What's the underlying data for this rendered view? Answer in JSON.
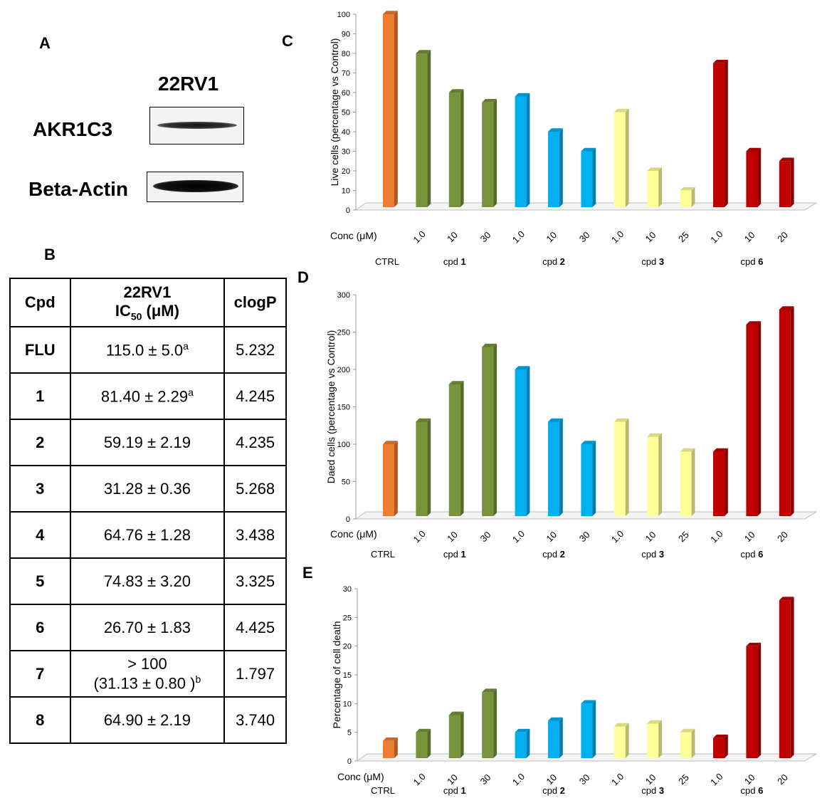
{
  "panel_a": {
    "letter": "A",
    "cell_line": "22RV1",
    "protein_1": "AKR1C3",
    "protein_2": "Beta-Actin"
  },
  "panel_b": {
    "letter": "B",
    "headers": {
      "cpd": "Cpd",
      "ic50_line1": "22RV1",
      "ic50_prefix": "IC",
      "ic50_sub": "50",
      "ic50_unit": " (μM)",
      "clogp": "clogP"
    },
    "rows": [
      {
        "cpd": "FLU",
        "ic50": "115.0 ± 5.0",
        "sup": "a",
        "clogp": "5.232"
      },
      {
        "cpd": "1",
        "ic50": "81.40 ± 2.29",
        "sup": "a",
        "clogp": "4.245"
      },
      {
        "cpd": "2",
        "ic50": "59.19 ± 2.19",
        "sup": "",
        "clogp": "4.235"
      },
      {
        "cpd": "3",
        "ic50": "31.28 ± 0.36",
        "sup": "",
        "clogp": "5.268"
      },
      {
        "cpd": "4",
        "ic50": "64.76 ± 1.28",
        "sup": "",
        "clogp": "3.438"
      },
      {
        "cpd": "5",
        "ic50": "74.83 ± 3.20",
        "sup": "",
        "clogp": "3.325"
      },
      {
        "cpd": "6",
        "ic50": "26.70 ± 1.83",
        "sup": "",
        "clogp": "4.425"
      },
      {
        "cpd": "7",
        "ic50": "> 100",
        "ic50_line2": "(31.13 ± 0.80 )",
        "sup": "b",
        "clogp": "1.797"
      },
      {
        "cpd": "8",
        "ic50": "64.90 ± 2.19",
        "sup": "",
        "clogp": "3.740"
      }
    ]
  },
  "colors": {
    "ctrl": "#ed7d31",
    "cpd1": "#77933c",
    "cpd2": "#00b0f0",
    "cpd3": "#ffff99",
    "cpd6": "#c00000"
  },
  "chart_data": [
    {
      "panel": "C",
      "type": "bar",
      "ylabel": "Live cells (percentage vs Control)",
      "conc_label": "Conc (μM)",
      "ylim": [
        0,
        100
      ],
      "yticks": [
        0,
        10,
        20,
        30,
        40,
        50,
        60,
        70,
        80,
        90,
        100
      ],
      "conc": [
        "",
        "1.0",
        "10",
        "30",
        "1.0",
        "10",
        "30",
        "1.0",
        "10",
        "25",
        "1.0",
        "10",
        "20"
      ],
      "groups": [
        "ctrl",
        "cpd1",
        "cpd1",
        "cpd1",
        "cpd2",
        "cpd2",
        "cpd2",
        "cpd3",
        "cpd3",
        "cpd3",
        "cpd6",
        "cpd6",
        "cpd6"
      ],
      "values": [
        100,
        80,
        60,
        55,
        58,
        40,
        30,
        50,
        20,
        10,
        75,
        30,
        25
      ],
      "group_labels": [
        {
          "text": "CTRL",
          "num": ""
        },
        {
          "text": "cpd ",
          "num": "1"
        },
        {
          "text": "cpd ",
          "num": "2"
        },
        {
          "text": "cpd ",
          "num": "3"
        },
        {
          "text": "cpd ",
          "num": "6"
        }
      ]
    },
    {
      "panel": "D",
      "type": "bar",
      "ylabel": "Daed cells (percentage vs Control)",
      "conc_label": "Conc (μM)",
      "ylim": [
        0,
        300
      ],
      "yticks": [
        0,
        50,
        100,
        150,
        200,
        250,
        300
      ],
      "conc": [
        "",
        "1.0",
        "10",
        "30",
        "1.0",
        "10",
        "30",
        "1.0",
        "10",
        "25",
        "1.0",
        "10",
        "20"
      ],
      "groups": [
        "ctrl",
        "cpd1",
        "cpd1",
        "cpd1",
        "cpd2",
        "cpd2",
        "cpd2",
        "cpd3",
        "cpd3",
        "cpd3",
        "cpd6",
        "cpd6",
        "cpd6"
      ],
      "values": [
        100,
        130,
        180,
        230,
        200,
        130,
        100,
        130,
        110,
        90,
        90,
        260,
        280
      ],
      "group_labels": [
        {
          "text": "CTRL",
          "num": ""
        },
        {
          "text": "cpd ",
          "num": "1"
        },
        {
          "text": "cpd ",
          "num": "2"
        },
        {
          "text": "cpd ",
          "num": "3"
        },
        {
          "text": "cpd ",
          "num": "6"
        }
      ]
    },
    {
      "panel": "E",
      "type": "bar",
      "ylabel": "Percentage of cell death",
      "conc_label": "Conc (μM)",
      "ylim": [
        0,
        30
      ],
      "yticks": [
        0,
        5,
        10,
        15,
        20,
        25,
        30
      ],
      "conc": [
        "",
        "1.0",
        "10",
        "30",
        "1.0",
        "10",
        "30",
        "1.0",
        "10",
        "25",
        "1.0",
        "10",
        "20"
      ],
      "groups": [
        "ctrl",
        "cpd1",
        "cpd1",
        "cpd1",
        "cpd2",
        "cpd2",
        "cpd2",
        "cpd3",
        "cpd3",
        "cpd3",
        "cpd6",
        "cpd6",
        "cpd6"
      ],
      "values": [
        3.5,
        5,
        8,
        12,
        5,
        7,
        10,
        6,
        6.5,
        5,
        4,
        20,
        28
      ],
      "group_labels": [
        {
          "text": "CTRL",
          "num": ""
        },
        {
          "text": "cpd ",
          "num": "1"
        },
        {
          "text": "cpd ",
          "num": "2"
        },
        {
          "text": "cpd ",
          "num": "3"
        },
        {
          "text": "cpd ",
          "num": "6"
        }
      ]
    }
  ]
}
